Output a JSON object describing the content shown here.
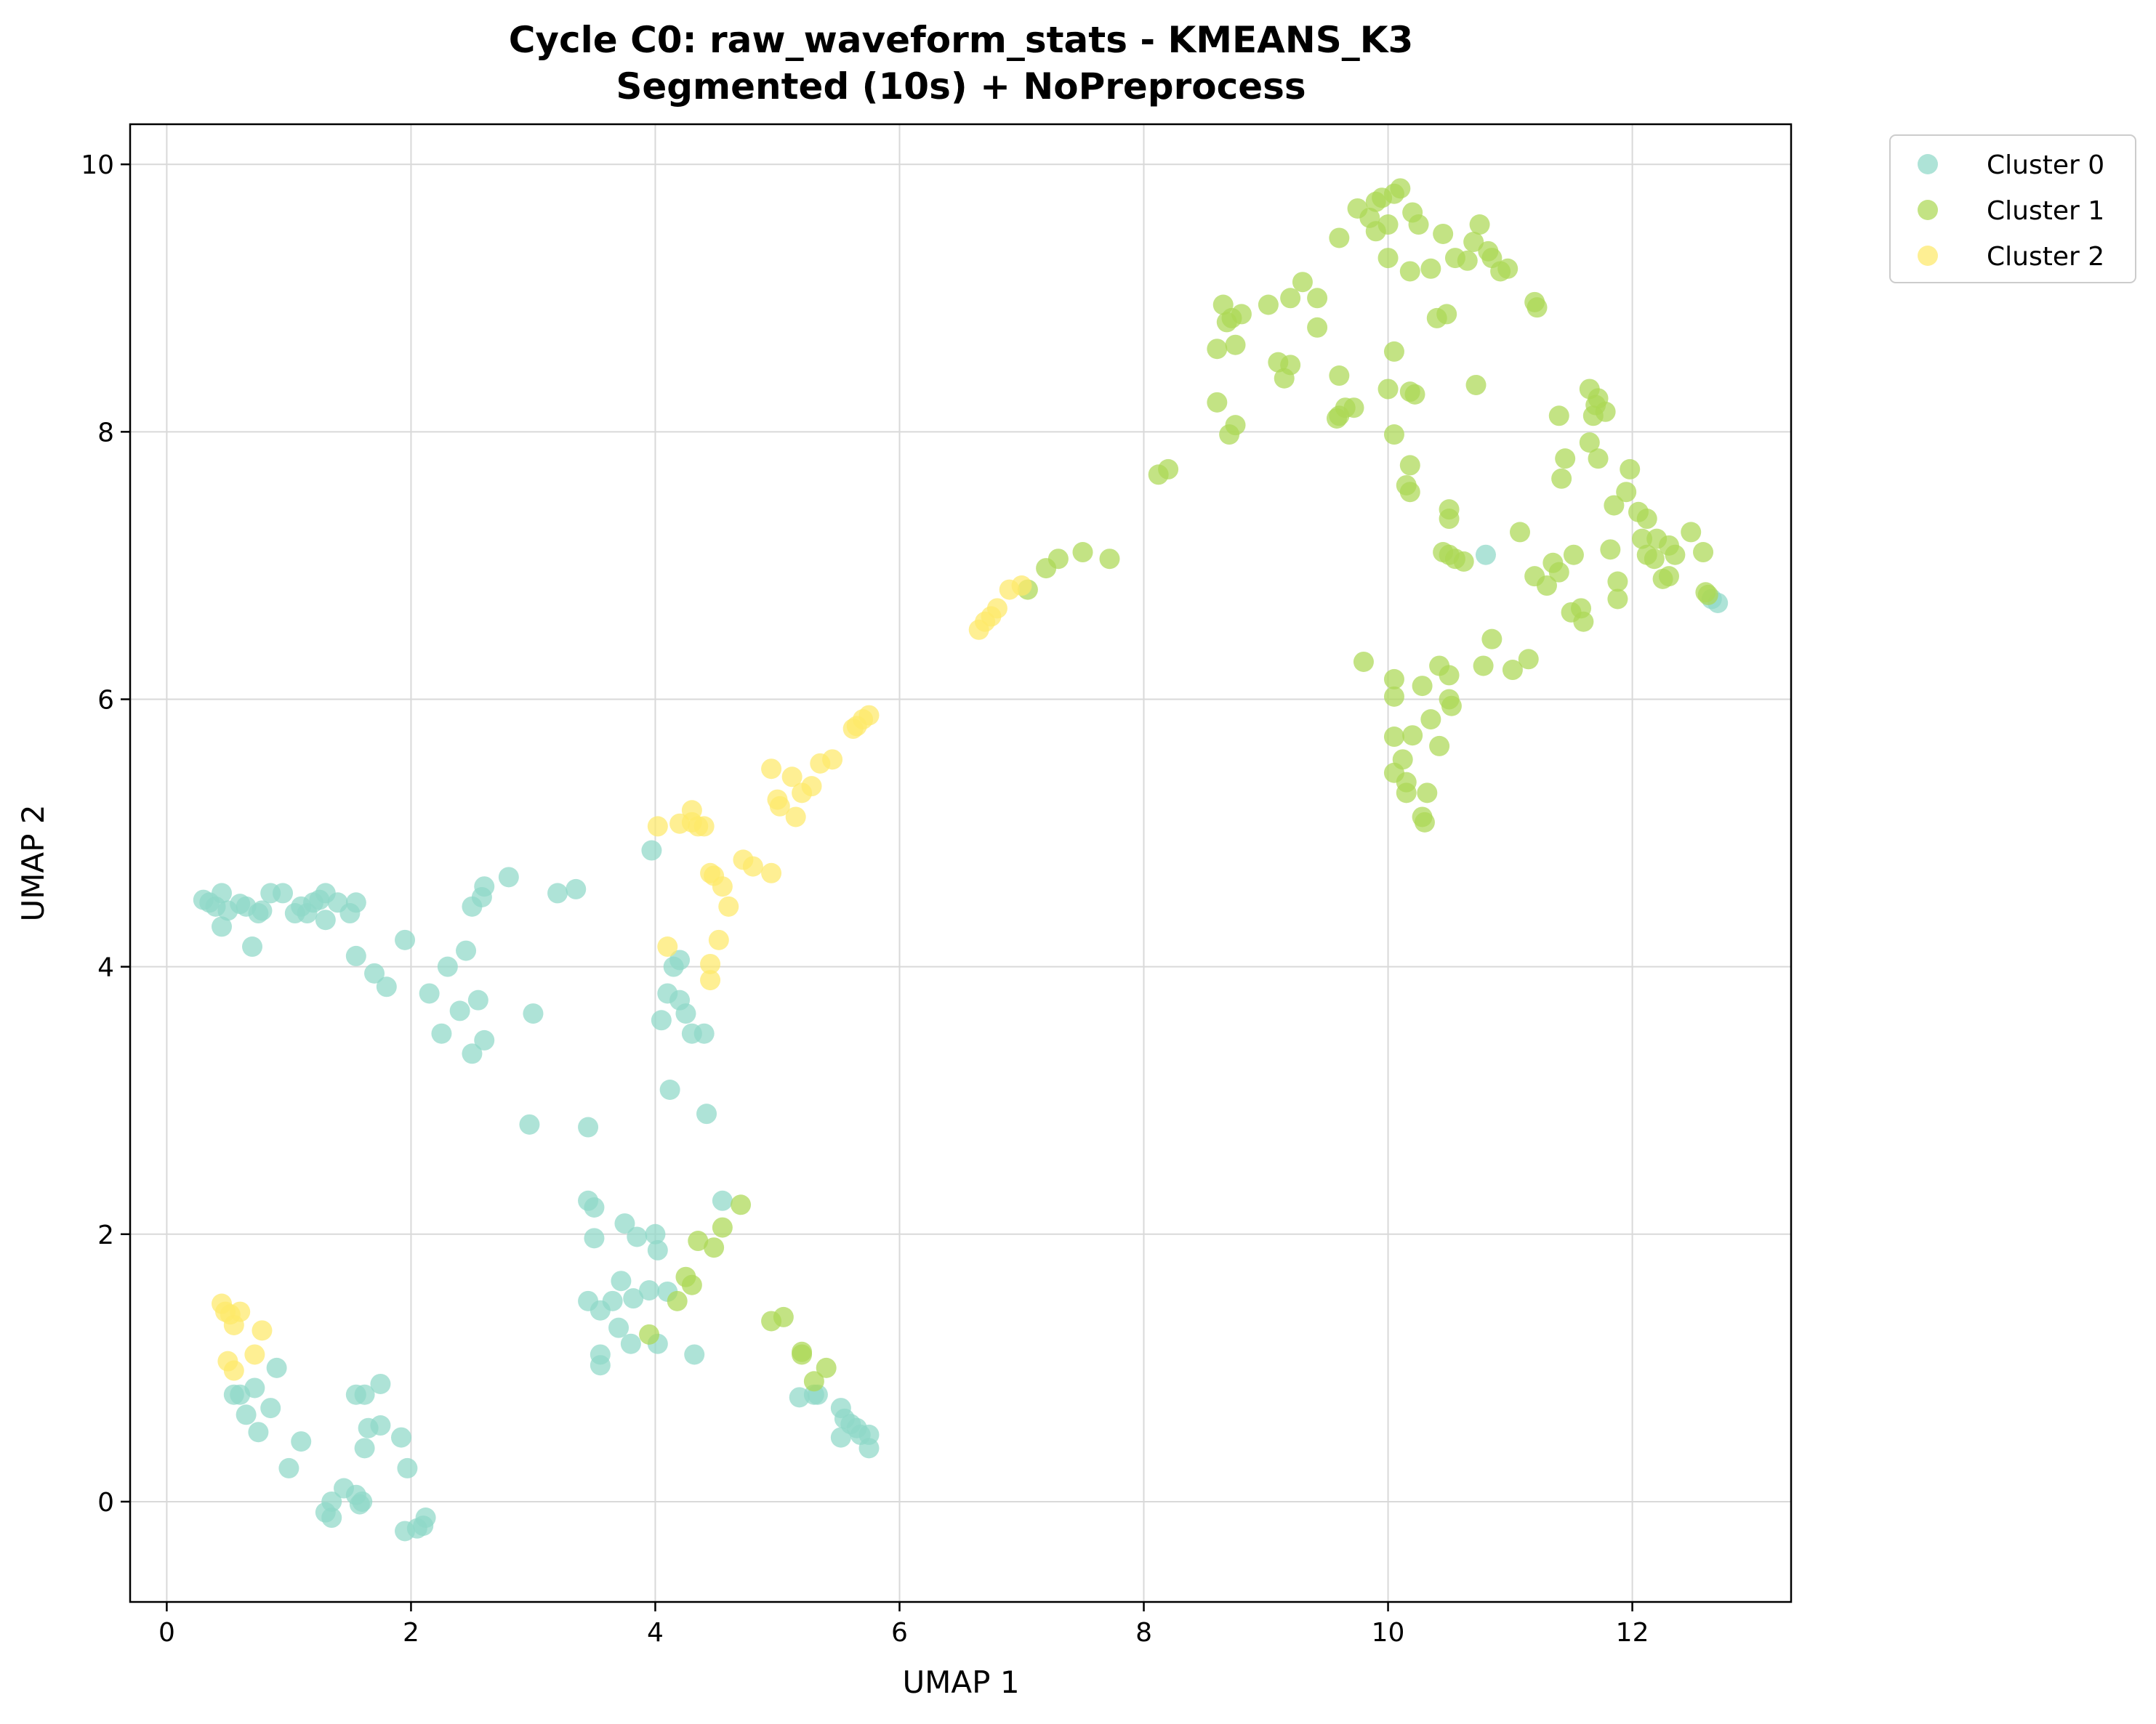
{
  "colors": {
    "cluster_0": "#8fd8c8",
    "cluster_1": "#acd855",
    "cluster_2": "#fde96a",
    "grid": "#d9d9d9",
    "axis": "#000000",
    "legend_border": "#cccccc"
  },
  "chart_data": {
    "type": "scatter",
    "title": "Cycle C0: raw_waveform_stats - KMEANS_K3",
    "subtitle": "Segmented (10s) + NoPreprocess",
    "xlabel": "UMAP 1",
    "ylabel": "UMAP 2",
    "xlim": [
      -0.3,
      13.3
    ],
    "ylim": [
      -0.75,
      10.3
    ],
    "xticks": [
      0,
      2,
      4,
      6,
      8,
      10,
      12
    ],
    "yticks": [
      0,
      2,
      4,
      6,
      8,
      10
    ],
    "xtick_labels": [
      "0",
      "2",
      "4",
      "6",
      "8",
      "10",
      "12"
    ],
    "ytick_labels": [
      "0",
      "2",
      "4",
      "6",
      "8",
      "10"
    ],
    "grid": true,
    "legend_position": "outside-top-right",
    "series": [
      {
        "name": "Cluster 0",
        "color": "#8fd8c8",
        "points": [
          [
            0.3,
            4.5
          ],
          [
            0.35,
            4.48
          ],
          [
            0.4,
            4.45
          ],
          [
            0.45,
            4.55
          ],
          [
            0.45,
            4.3
          ],
          [
            0.5,
            4.42
          ],
          [
            0.6,
            4.47
          ],
          [
            0.65,
            4.45
          ],
          [
            0.7,
            4.15
          ],
          [
            0.75,
            4.4
          ],
          [
            0.78,
            4.42
          ],
          [
            0.85,
            4.55
          ],
          [
            0.95,
            4.55
          ],
          [
            1.05,
            4.4
          ],
          [
            1.1,
            4.45
          ],
          [
            1.15,
            4.4
          ],
          [
            1.2,
            4.48
          ],
          [
            1.25,
            4.5
          ],
          [
            1.3,
            4.55
          ],
          [
            1.3,
            4.35
          ],
          [
            1.4,
            4.48
          ],
          [
            1.5,
            4.4
          ],
          [
            1.55,
            4.48
          ],
          [
            1.55,
            4.08
          ],
          [
            1.7,
            3.95
          ],
          [
            1.8,
            3.85
          ],
          [
            1.95,
            4.2
          ],
          [
            2.15,
            3.8
          ],
          [
            2.25,
            3.5
          ],
          [
            2.3,
            4.0
          ],
          [
            2.4,
            3.67
          ],
          [
            2.45,
            4.12
          ],
          [
            2.5,
            3.35
          ],
          [
            2.5,
            4.45
          ],
          [
            2.55,
            3.75
          ],
          [
            2.6,
            3.45
          ],
          [
            2.58,
            4.52
          ],
          [
            2.6,
            4.6
          ],
          [
            2.8,
            4.67
          ],
          [
            3.0,
            3.65
          ],
          [
            3.2,
            4.55
          ],
          [
            3.35,
            4.58
          ],
          [
            2.97,
            2.82
          ],
          [
            3.45,
            2.8
          ],
          [
            3.97,
            4.87
          ],
          [
            4.15,
            4.0
          ],
          [
            4.2,
            4.05
          ],
          [
            4.1,
            3.8
          ],
          [
            4.2,
            3.75
          ],
          [
            4.25,
            3.65
          ],
          [
            4.3,
            3.5
          ],
          [
            4.05,
            3.6
          ],
          [
            4.4,
            3.5
          ],
          [
            4.12,
            3.08
          ],
          [
            4.42,
            2.9
          ],
          [
            4.55,
            2.25
          ],
          [
            3.45,
            2.25
          ],
          [
            3.5,
            2.2
          ],
          [
            3.5,
            1.97
          ],
          [
            3.75,
            2.08
          ],
          [
            3.85,
            1.98
          ],
          [
            4.0,
            2.0
          ],
          [
            4.02,
            1.88
          ],
          [
            3.45,
            1.5
          ],
          [
            3.55,
            1.43
          ],
          [
            3.65,
            1.5
          ],
          [
            3.72,
            1.65
          ],
          [
            3.82,
            1.52
          ],
          [
            3.95,
            1.58
          ],
          [
            4.1,
            1.57
          ],
          [
            3.7,
            1.3
          ],
          [
            3.8,
            1.18
          ],
          [
            3.55,
            1.1
          ],
          [
            3.55,
            1.02
          ],
          [
            4.02,
            1.18
          ],
          [
            4.32,
            1.1
          ],
          [
            0.55,
            0.8
          ],
          [
            0.6,
            0.8
          ],
          [
            0.72,
            0.85
          ],
          [
            0.65,
            0.65
          ],
          [
            0.75,
            0.52
          ],
          [
            0.85,
            0.7
          ],
          [
            0.9,
            1.0
          ],
          [
            1.0,
            0.25
          ],
          [
            1.1,
            0.45
          ],
          [
            1.3,
            -0.08
          ],
          [
            1.35,
            -0.12
          ],
          [
            1.35,
            0.0
          ],
          [
            1.45,
            0.1
          ],
          [
            1.55,
            0.05
          ],
          [
            1.58,
            -0.02
          ],
          [
            1.6,
            0.0
          ],
          [
            1.55,
            0.8
          ],
          [
            1.62,
            0.8
          ],
          [
            1.65,
            0.55
          ],
          [
            1.62,
            0.4
          ],
          [
            1.75,
            0.88
          ],
          [
            1.75,
            0.57
          ],
          [
            1.92,
            0.48
          ],
          [
            1.97,
            0.25
          ],
          [
            1.95,
            -0.22
          ],
          [
            2.05,
            -0.2
          ],
          [
            2.1,
            -0.18
          ],
          [
            2.12,
            -0.12
          ],
          [
            5.18,
            0.78
          ],
          [
            5.3,
            0.8
          ],
          [
            5.33,
            0.8
          ],
          [
            5.52,
            0.7
          ],
          [
            5.55,
            0.62
          ],
          [
            5.6,
            0.58
          ],
          [
            5.65,
            0.55
          ],
          [
            5.68,
            0.5
          ],
          [
            5.52,
            0.48
          ],
          [
            5.75,
            0.5
          ],
          [
            5.75,
            0.4
          ],
          [
            10.8,
            7.08
          ],
          [
            12.65,
            6.75
          ],
          [
            12.7,
            6.72
          ]
        ]
      },
      {
        "name": "Cluster 1",
        "color": "#acd855",
        "points": [
          [
            9.75,
            9.67
          ],
          [
            9.85,
            9.6
          ],
          [
            9.9,
            9.72
          ],
          [
            9.95,
            9.75
          ],
          [
            10.0,
            9.55
          ],
          [
            10.05,
            9.78
          ],
          [
            10.1,
            9.82
          ],
          [
            10.2,
            9.64
          ],
          [
            10.25,
            9.55
          ],
          [
            9.9,
            9.5
          ],
          [
            9.6,
            9.45
          ],
          [
            10.45,
            9.48
          ],
          [
            10.75,
            9.55
          ],
          [
            10.7,
            9.42
          ],
          [
            10.82,
            9.35
          ],
          [
            10.85,
            9.3
          ],
          [
            10.55,
            9.3
          ],
          [
            10.65,
            9.28
          ],
          [
            10.0,
            9.3
          ],
          [
            10.18,
            9.2
          ],
          [
            10.35,
            9.22
          ],
          [
            10.92,
            9.2
          ],
          [
            10.98,
            9.22
          ],
          [
            11.2,
            8.97
          ],
          [
            11.22,
            8.93
          ],
          [
            9.3,
            9.12
          ],
          [
            9.2,
            9.0
          ],
          [
            9.42,
            9.0
          ],
          [
            9.02,
            8.95
          ],
          [
            8.65,
            8.95
          ],
          [
            8.68,
            8.82
          ],
          [
            8.72,
            8.85
          ],
          [
            8.8,
            8.88
          ],
          [
            8.6,
            8.62
          ],
          [
            8.75,
            8.65
          ],
          [
            9.42,
            8.78
          ],
          [
            10.4,
            8.85
          ],
          [
            10.48,
            8.88
          ],
          [
            10.05,
            8.6
          ],
          [
            9.1,
            8.52
          ],
          [
            9.2,
            8.5
          ],
          [
            9.15,
            8.4
          ],
          [
            9.6,
            8.42
          ],
          [
            10.0,
            8.32
          ],
          [
            10.18,
            8.3
          ],
          [
            10.22,
            8.28
          ],
          [
            10.72,
            8.35
          ],
          [
            8.6,
            8.22
          ],
          [
            9.6,
            8.12
          ],
          [
            9.65,
            8.18
          ],
          [
            9.72,
            8.18
          ],
          [
            9.58,
            8.1
          ],
          [
            8.7,
            7.98
          ],
          [
            8.75,
            8.05
          ],
          [
            10.05,
            7.98
          ],
          [
            11.4,
            8.12
          ],
          [
            11.65,
            8.32
          ],
          [
            11.72,
            8.25
          ],
          [
            11.7,
            8.2
          ],
          [
            11.68,
            8.12
          ],
          [
            11.78,
            8.15
          ],
          [
            8.12,
            7.68
          ],
          [
            8.2,
            7.72
          ],
          [
            10.15,
            7.6
          ],
          [
            10.18,
            7.55
          ],
          [
            10.18,
            7.75
          ],
          [
            11.45,
            7.8
          ],
          [
            11.42,
            7.65
          ],
          [
            11.65,
            7.92
          ],
          [
            11.72,
            7.8
          ],
          [
            11.98,
            7.72
          ],
          [
            11.95,
            7.55
          ],
          [
            11.85,
            7.45
          ],
          [
            12.05,
            7.4
          ],
          [
            12.12,
            7.35
          ],
          [
            12.08,
            7.2
          ],
          [
            12.2,
            7.2
          ],
          [
            12.12,
            7.08
          ],
          [
            12.18,
            7.05
          ],
          [
            12.3,
            7.15
          ],
          [
            12.35,
            7.08
          ],
          [
            12.48,
            7.25
          ],
          [
            12.58,
            7.1
          ],
          [
            12.25,
            6.9
          ],
          [
            12.3,
            6.92
          ],
          [
            12.6,
            6.8
          ],
          [
            12.62,
            6.78
          ],
          [
            10.5,
            7.42
          ],
          [
            10.5,
            7.35
          ],
          [
            10.45,
            7.1
          ],
          [
            10.5,
            7.08
          ],
          [
            10.55,
            7.05
          ],
          [
            10.62,
            7.03
          ],
          [
            11.08,
            7.25
          ],
          [
            11.2,
            6.92
          ],
          [
            11.3,
            6.85
          ],
          [
            11.35,
            7.02
          ],
          [
            11.4,
            6.95
          ],
          [
            11.52,
            7.08
          ],
          [
            11.82,
            7.12
          ],
          [
            11.5,
            6.65
          ],
          [
            11.58,
            6.68
          ],
          [
            11.6,
            6.58
          ],
          [
            11.88,
            6.88
          ],
          [
            11.88,
            6.75
          ],
          [
            7.2,
            6.98
          ],
          [
            7.3,
            7.05
          ],
          [
            7.5,
            7.1
          ],
          [
            7.72,
            7.05
          ],
          [
            7.05,
            6.82
          ],
          [
            9.8,
            6.28
          ],
          [
            10.05,
            6.15
          ],
          [
            10.05,
            6.02
          ],
          [
            10.42,
            6.25
          ],
          [
            10.5,
            6.18
          ],
          [
            10.28,
            6.1
          ],
          [
            10.5,
            6.0
          ],
          [
            10.52,
            5.95
          ],
          [
            10.78,
            6.25
          ],
          [
            10.85,
            6.45
          ],
          [
            11.02,
            6.22
          ],
          [
            11.15,
            6.3
          ],
          [
            10.05,
            5.72
          ],
          [
            10.2,
            5.73
          ],
          [
            10.35,
            5.85
          ],
          [
            10.42,
            5.65
          ],
          [
            10.12,
            5.55
          ],
          [
            10.05,
            5.45
          ],
          [
            10.15,
            5.38
          ],
          [
            10.15,
            5.3
          ],
          [
            10.32,
            5.3
          ],
          [
            10.28,
            5.12
          ],
          [
            10.3,
            5.08
          ],
          [
            4.7,
            2.22
          ],
          [
            4.55,
            2.05
          ],
          [
            4.35,
            1.95
          ],
          [
            4.48,
            1.9
          ],
          [
            4.25,
            1.68
          ],
          [
            4.3,
            1.62
          ],
          [
            4.18,
            1.5
          ],
          [
            3.95,
            1.25
          ],
          [
            4.95,
            1.35
          ],
          [
            5.05,
            1.38
          ],
          [
            5.2,
            1.12
          ],
          [
            5.2,
            1.1
          ],
          [
            5.3,
            0.9
          ],
          [
            5.4,
            1.0
          ]
        ]
      },
      {
        "name": "Cluster 2",
        "color": "#fde96a",
        "points": [
          [
            0.45,
            1.48
          ],
          [
            0.48,
            1.42
          ],
          [
            0.52,
            1.4
          ],
          [
            0.55,
            1.32
          ],
          [
            0.6,
            1.42
          ],
          [
            0.72,
            1.1
          ],
          [
            0.78,
            1.28
          ],
          [
            0.5,
            1.05
          ],
          [
            0.55,
            0.98
          ],
          [
            4.02,
            5.05
          ],
          [
            4.2,
            5.07
          ],
          [
            4.3,
            5.17
          ],
          [
            4.3,
            5.08
          ],
          [
            4.35,
            5.05
          ],
          [
            4.4,
            5.05
          ],
          [
            4.1,
            4.15
          ],
          [
            4.45,
            4.7
          ],
          [
            4.48,
            4.68
          ],
          [
            4.55,
            4.6
          ],
          [
            4.6,
            4.45
          ],
          [
            4.52,
            4.2
          ],
          [
            4.45,
            4.02
          ],
          [
            4.45,
            3.9
          ],
          [
            4.72,
            4.8
          ],
          [
            4.8,
            4.75
          ],
          [
            4.95,
            4.7
          ],
          [
            4.95,
            5.48
          ],
          [
            5.0,
            5.25
          ],
          [
            5.02,
            5.2
          ],
          [
            5.12,
            5.42
          ],
          [
            5.15,
            5.12
          ],
          [
            5.2,
            5.3
          ],
          [
            5.28,
            5.35
          ],
          [
            5.35,
            5.52
          ],
          [
            5.45,
            5.55
          ],
          [
            5.62,
            5.78
          ],
          [
            5.65,
            5.8
          ],
          [
            5.7,
            5.85
          ],
          [
            5.75,
            5.88
          ],
          [
            6.65,
            6.52
          ],
          [
            6.7,
            6.58
          ],
          [
            6.75,
            6.62
          ],
          [
            6.8,
            6.68
          ],
          [
            6.9,
            6.82
          ],
          [
            7.0,
            6.85
          ]
        ]
      }
    ]
  }
}
